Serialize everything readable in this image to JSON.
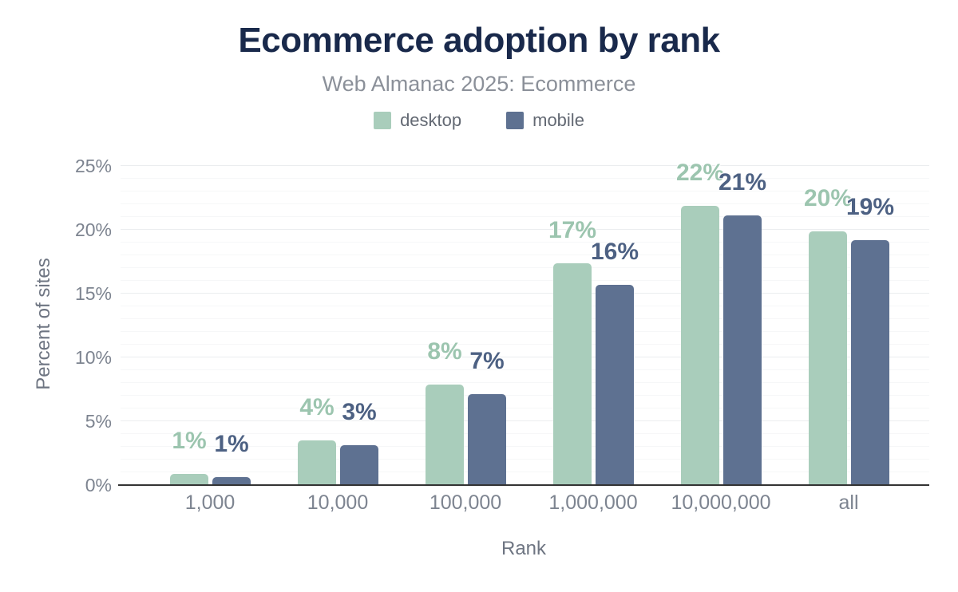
{
  "title": "Ecommerce adoption by rank",
  "subtitle": "Web Almanac 2025: Ecommerce",
  "chart_data": {
    "type": "bar",
    "title": "Ecommerce adoption by rank",
    "subtitle": "Web Almanac 2025: Ecommerce",
    "categories": [
      "1,000",
      "10,000",
      "100,000",
      "1,000,000",
      "10,000,000",
      "all"
    ],
    "series": [
      {
        "name": "desktop",
        "color": "#a9cdbb",
        "label_color": "#9cc5af",
        "values": [
          0.9,
          3.5,
          7.9,
          17.4,
          21.9,
          19.9
        ],
        "labels": [
          "1%",
          "4%",
          "8%",
          "17%",
          "22%",
          "20%"
        ]
      },
      {
        "name": "mobile",
        "color": "#5e7191",
        "label_color": "#4d6183",
        "values": [
          0.6,
          3.1,
          7.1,
          15.7,
          21.1,
          19.2
        ],
        "labels": [
          "1%",
          "3%",
          "7%",
          "16%",
          "21%",
          "19%"
        ]
      }
    ],
    "xlabel": "Rank",
    "ylabel": "Percent of sites",
    "ylim": [
      0,
      25
    ],
    "yticks": [
      "0%",
      "5%",
      "10%",
      "15%",
      "20%",
      "25%"
    ],
    "grid": {
      "major_step_percent": 5,
      "minor_step_percent": 1,
      "grid_on": true
    },
    "legend_position": "top"
  },
  "colors": {
    "background": "#ffffff",
    "title": "#19294b",
    "subtitle": "#8b9099",
    "axis_text": "#7d8490",
    "axis_title_text": "#6e7582",
    "axis_line": "#333333",
    "grid_major": "#ebedef",
    "grid_minor": "#f6f7f8",
    "desktop_bar": "#a9cdbb",
    "mobile_bar": "#5e7191",
    "desktop_label": "#9cc5af",
    "mobile_label": "#4d6183"
  }
}
